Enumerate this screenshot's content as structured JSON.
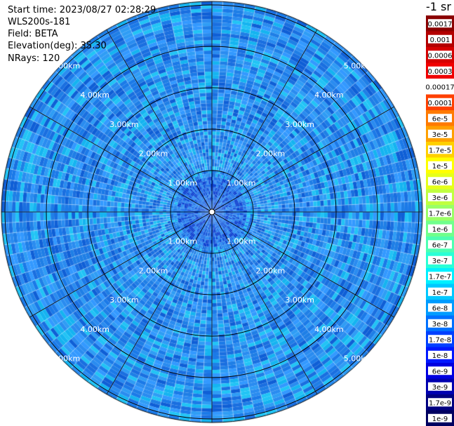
{
  "header": {
    "start_time": "Start time: 2023/08/27 02:28:29",
    "instrument": "WLS200s-181",
    "field": "Field: BETA",
    "elevation": "Elevation(deg): 35.30",
    "nrays": "NRays: 120"
  },
  "colorbar": {
    "unit": "-1 sr",
    "labels": [
      "0.0017",
      "0.001",
      "0.0006",
      "0.0003",
      "0.00017",
      "0.0001",
      "6e-5",
      "3e-5",
      "1.7e-5",
      "1e-5",
      "6e-6",
      "3e-6",
      "1.7e-6",
      "1e-6",
      "6e-7",
      "3e-7",
      "1.7e-7",
      "1e-7",
      "6e-8",
      "3e-8",
      "1.7e-8",
      "1e-8",
      "6e-9",
      "3e-9",
      "1.7e-9",
      "1e-9"
    ],
    "colors": [
      "#8b0000",
      "#b30000",
      "#d60000",
      "#f00000",
      "#ffffff",
      "#ff4000",
      "#ff7a00",
      "#ffa000",
      "#ffd000",
      "#ffff00",
      "#e6ff1a",
      "#c0ff3f",
      "#9aff66",
      "#70ff8c",
      "#4dffb2",
      "#29ffd6",
      "#00f0ff",
      "#00c8ff",
      "#009cff",
      "#0070ff",
      "#0040ff",
      "#0018ff",
      "#0000e0",
      "#0000b0",
      "#000080",
      "#000060"
    ]
  },
  "chart_data": {
    "type": "heatmap",
    "subtype": "polar PPI scan",
    "field": "BETA",
    "elevation_deg": 35.3,
    "nrays": 120,
    "range_rings_km": [
      1.0,
      2.0,
      3.0,
      4.0,
      5.0
    ],
    "ring_labels": [
      "1.00km",
      "2.00km",
      "3.00km",
      "4.00km",
      "5.00km"
    ],
    "max_range_km": 5.9,
    "color_scale": "log",
    "dominant_value_range": [
      6e-08,
      1e-07
    ],
    "grid": true
  }
}
